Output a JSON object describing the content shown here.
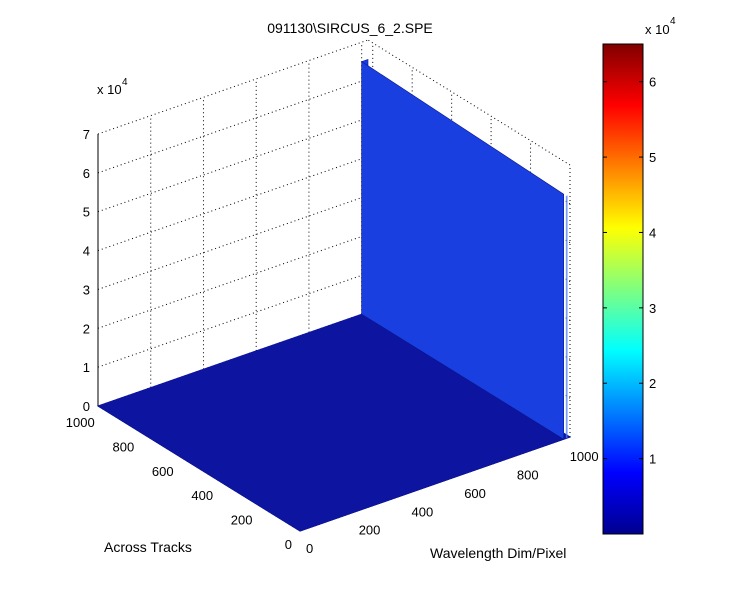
{
  "chart_data": {
    "type": "surface",
    "title": "091130\\SIRCUS_6_2.SPE",
    "xlabel": "Wavelength Dim/Pixel",
    "ylabel": "Across Tracks",
    "zlabel": "",
    "xlim": [
      0,
      1024
    ],
    "ylim": [
      0,
      1024
    ],
    "zlim": [
      0,
      70000
    ],
    "xticks": [
      "0",
      "200",
      "400",
      "600",
      "800",
      "1000"
    ],
    "yticks": [
      "0",
      "200",
      "400",
      "600",
      "800",
      "1000"
    ],
    "zticks": [
      "0",
      "1",
      "2",
      "3",
      "4",
      "5",
      "6",
      "7"
    ],
    "zscale_label": "x 10",
    "zscale_exponent": "4",
    "baseline": 0,
    "peak": {
      "x_range": [
        1000,
        1024
      ],
      "y_range": [
        0,
        1024
      ],
      "z_max": 65000
    },
    "colorbar": {
      "colormap": "jet",
      "range": [
        0,
        65000
      ],
      "ticks": [
        "1",
        "2",
        "3",
        "4",
        "5",
        "6"
      ],
      "scale_label": "x 10",
      "scale_exponent": "4"
    },
    "grid": true,
    "colors": {
      "surface": "#0c14a0",
      "peak": "#1a3fe0",
      "peak_highlight": "#4f7ef5"
    }
  }
}
